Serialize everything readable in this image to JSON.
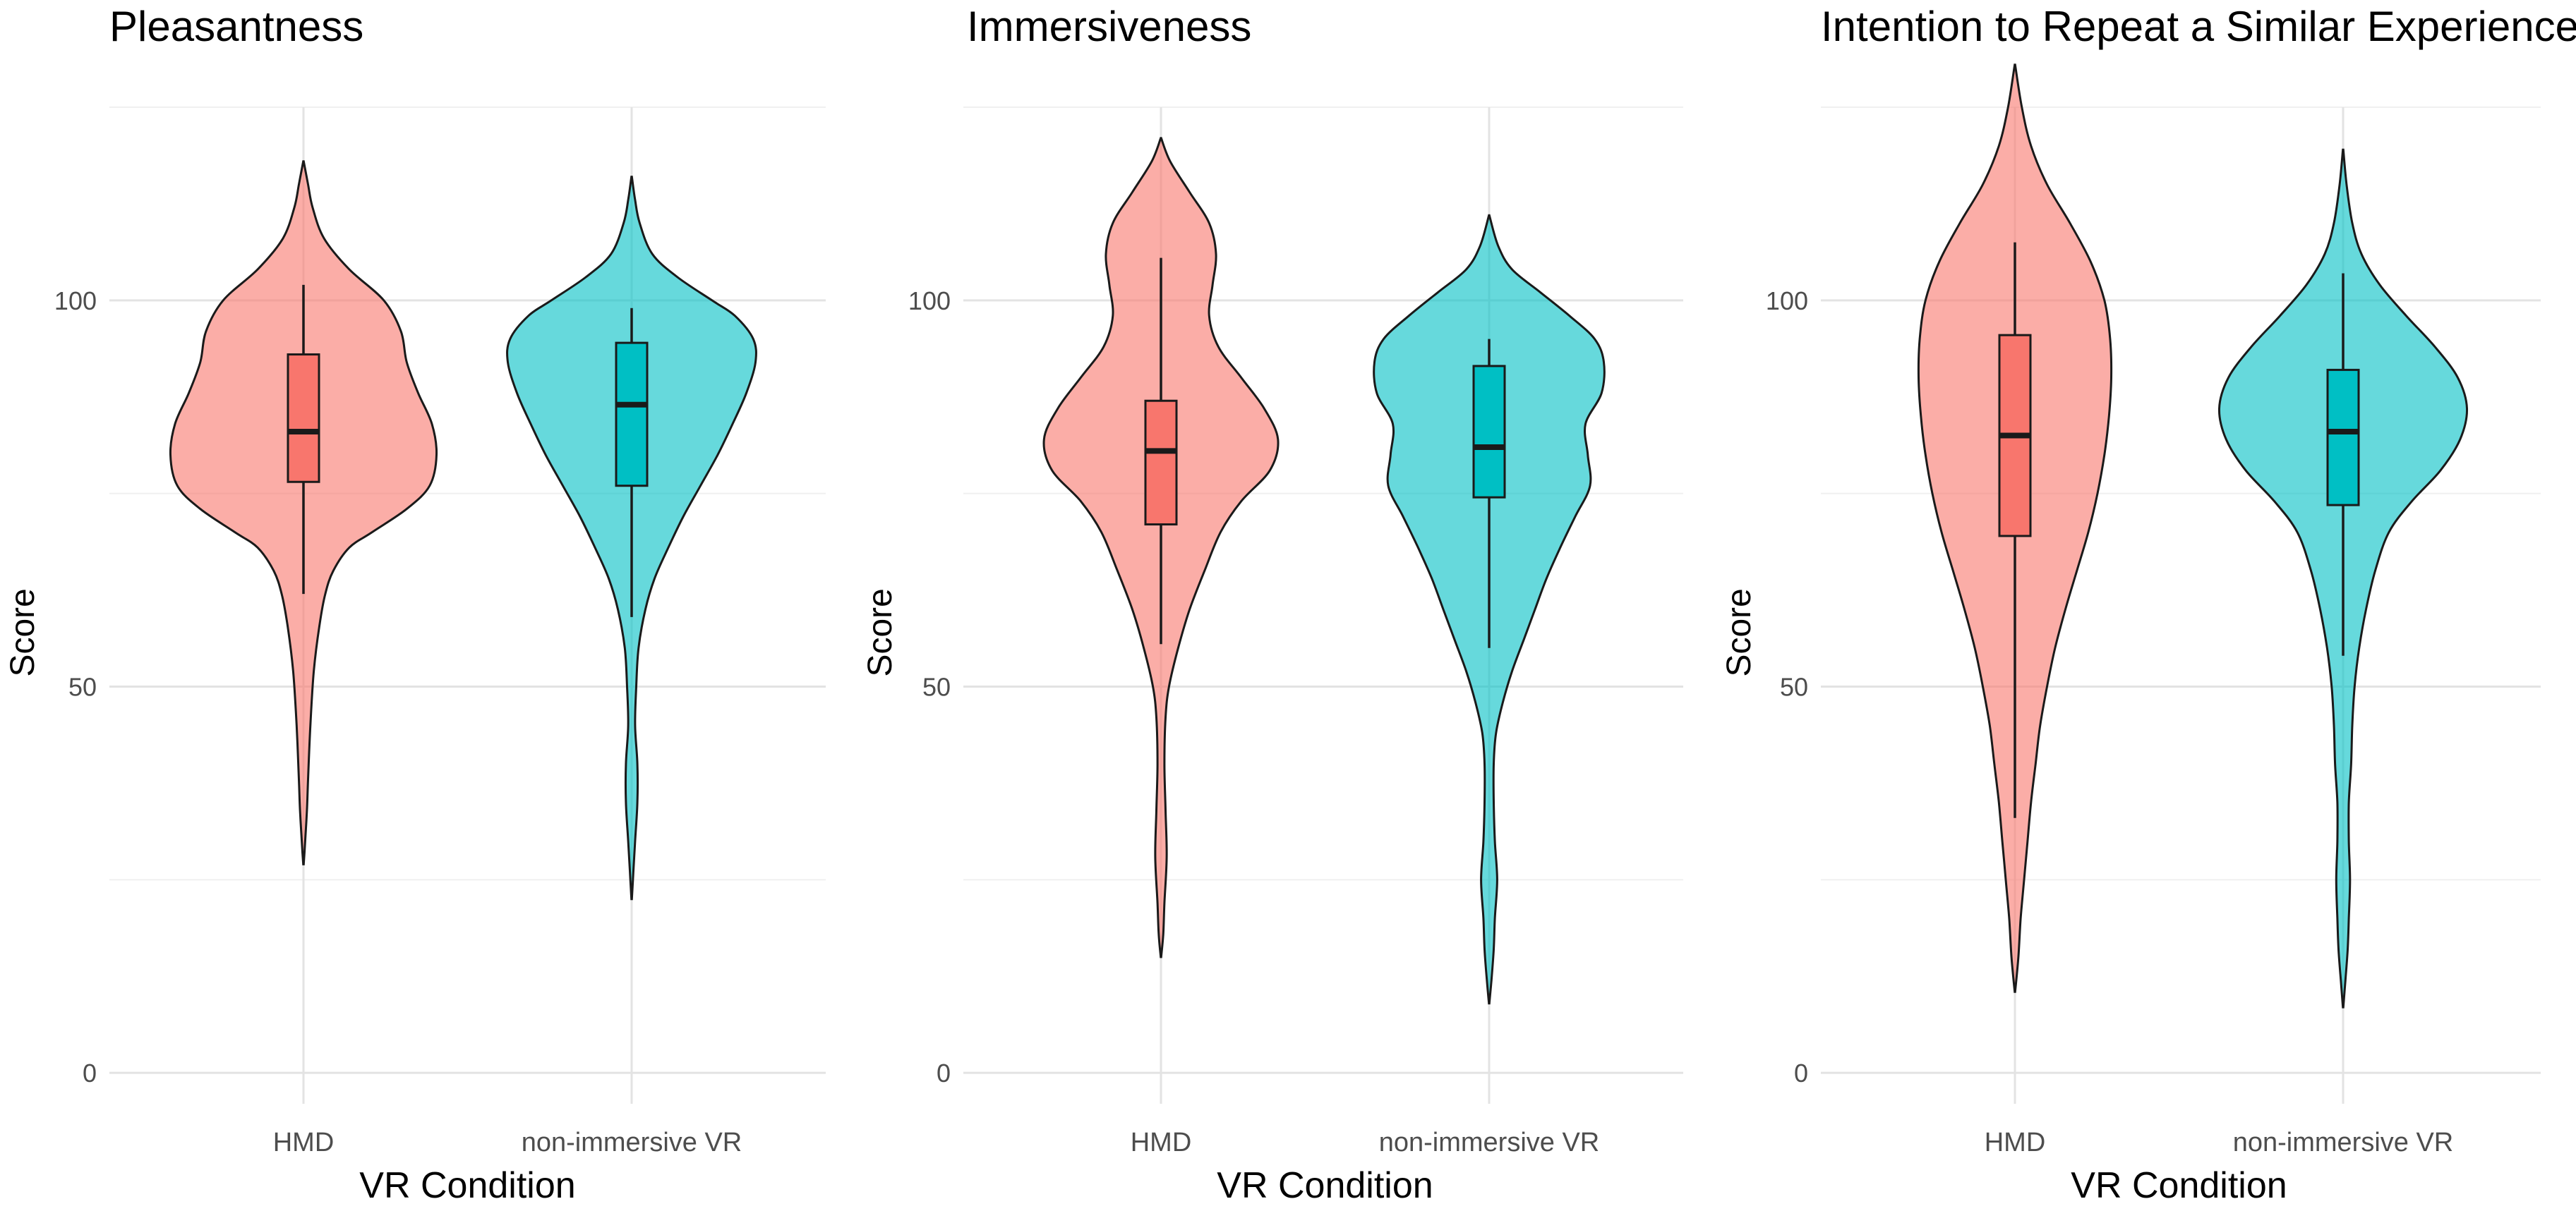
{
  "chart_data": [
    {
      "type": "violin",
      "title": "Pleasantness",
      "xlabel": "VR Condition",
      "ylabel": "Score",
      "ylim": [
        -4,
        125
      ],
      "yticks": [
        0,
        50,
        100
      ],
      "ytick_labels": [
        "0",
        "50",
        "100"
      ],
      "minor_yticks": [
        25,
        75,
        125
      ],
      "categories": [
        "HMD",
        "non-immersive VR"
      ],
      "grid": true,
      "series": [
        {
          "name": "HMD",
          "fill": "#F8766D",
          "violin_range": [
            27,
            118
          ],
          "density_half_width": [
            [
              27,
              0.2
            ],
            [
              30,
              1.5
            ],
            [
              34,
              3
            ],
            [
              38,
              4
            ],
            [
              45,
              6
            ],
            [
              52,
              9
            ],
            [
              58,
              14
            ],
            [
              62,
              19
            ],
            [
              65,
              26
            ],
            [
              68,
              40
            ],
            [
              70,
              60
            ],
            [
              73,
              90
            ],
            [
              76,
              110
            ],
            [
              80,
              116
            ],
            [
              84,
              112
            ],
            [
              88,
              100
            ],
            [
              92,
              90
            ],
            [
              96,
              85
            ],
            [
              100,
              70
            ],
            [
              104,
              40
            ],
            [
              108,
              18
            ],
            [
              112,
              8
            ],
            [
              115,
              4
            ],
            [
              118,
              0.2
            ]
          ],
          "box": {
            "whisker_low": 62,
            "q1": 76.5,
            "median": 83,
            "q3": 93,
            "whisker_high": 102
          }
        },
        {
          "name": "non-immersive VR",
          "fill": "#00BFC4",
          "violin_range": [
            22.5,
            116
          ],
          "density_half_width": [
            [
              22.5,
              0.2
            ],
            [
              26,
              1.5
            ],
            [
              30,
              3
            ],
            [
              35,
              5
            ],
            [
              40,
              5
            ],
            [
              45,
              3
            ],
            [
              50,
              4
            ],
            [
              55,
              6
            ],
            [
              60,
              12
            ],
            [
              64,
              20
            ],
            [
              68,
              32
            ],
            [
              72,
              45
            ],
            [
              76,
              60
            ],
            [
              80,
              75
            ],
            [
              84,
              88
            ],
            [
              88,
              100
            ],
            [
              92,
              108
            ],
            [
              95,
              106
            ],
            [
              98,
              90
            ],
            [
              100,
              70
            ],
            [
              103,
              40
            ],
            [
              106,
              18
            ],
            [
              110,
              7
            ],
            [
              113,
              3
            ],
            [
              116,
              0.2
            ]
          ],
          "box": {
            "whisker_low": 59,
            "q1": 76,
            "median": 86.5,
            "q3": 94.5,
            "whisker_high": 99
          }
        }
      ]
    },
    {
      "type": "violin",
      "title": "Immersiveness",
      "xlabel": "VR Condition",
      "ylabel": "Score",
      "ylim": [
        -4,
        125
      ],
      "yticks": [
        0,
        50,
        100
      ],
      "ytick_labels": [
        "0",
        "50",
        "100"
      ],
      "minor_yticks": [
        25,
        75,
        125
      ],
      "categories": [
        "HMD",
        "non-immersive VR"
      ],
      "grid": true,
      "series": [
        {
          "name": "HMD",
          "fill": "#F8766D",
          "violin_range": [
            15,
            121
          ],
          "density_half_width": [
            [
              15,
              0.2
            ],
            [
              18,
              2
            ],
            [
              22,
              3
            ],
            [
              28,
              5
            ],
            [
              34,
              4
            ],
            [
              40,
              3
            ],
            [
              46,
              4
            ],
            [
              50,
              7
            ],
            [
              55,
              15
            ],
            [
              60,
              25
            ],
            [
              65,
              38
            ],
            [
              70,
              52
            ],
            [
              74,
              70
            ],
            [
              78,
              95
            ],
            [
              82,
              102
            ],
            [
              86,
              90
            ],
            [
              90,
              70
            ],
            [
              94,
              50
            ],
            [
              98,
              42
            ],
            [
              102,
              45
            ],
            [
              106,
              48
            ],
            [
              110,
              42
            ],
            [
              114,
              25
            ],
            [
              118,
              8
            ],
            [
              121,
              0.2
            ]
          ],
          "box": {
            "whisker_low": 55.5,
            "q1": 71,
            "median": 80.5,
            "q3": 87,
            "whisker_high": 105.5
          }
        },
        {
          "name": "non-immersive VR",
          "fill": "#00BFC4",
          "violin_range": [
            9,
            111
          ],
          "density_half_width": [
            [
              9,
              0.2
            ],
            [
              12,
              2
            ],
            [
              16,
              4
            ],
            [
              20,
              5
            ],
            [
              25,
              7
            ],
            [
              30,
              5
            ],
            [
              35,
              4
            ],
            [
              40,
              4
            ],
            [
              44,
              6
            ],
            [
              48,
              12
            ],
            [
              52,
              20
            ],
            [
              56,
              30
            ],
            [
              60,
              40
            ],
            [
              64,
              50
            ],
            [
              68,
              62
            ],
            [
              72,
              75
            ],
            [
              76,
              88
            ],
            [
              80,
              86
            ],
            [
              84,
              84
            ],
            [
              88,
              98
            ],
            [
              92,
              100
            ],
            [
              95,
              92
            ],
            [
              98,
              70
            ],
            [
              101,
              45
            ],
            [
              104,
              20
            ],
            [
              107,
              8
            ],
            [
              111,
              0.2
            ]
          ],
          "box": {
            "whisker_low": 55,
            "q1": 74.5,
            "median": 81,
            "q3": 91.5,
            "whisker_high": 95
          }
        }
      ]
    },
    {
      "type": "violin",
      "title": "Intention to Repeat a Similar Experience",
      "xlabel": "VR Condition",
      "ylabel": "Score",
      "ylim": [
        -4,
        125
      ],
      "yticks": [
        0,
        50,
        100
      ],
      "ytick_labels": [
        "0",
        "50",
        "100"
      ],
      "minor_yticks": [
        25,
        75,
        125
      ],
      "categories": [
        "HMD",
        "non-immersive VR"
      ],
      "grid": true,
      "series": [
        {
          "name": "HMD",
          "fill": "#F8766D",
          "violin_range": [
            10.5,
            130.5
          ],
          "density_half_width": [
            [
              10.5,
              0.2
            ],
            [
              15,
              3
            ],
            [
              20,
              5
            ],
            [
              25,
              8
            ],
            [
              30,
              11
            ],
            [
              35,
              14
            ],
            [
              40,
              18
            ],
            [
              45,
              22
            ],
            [
              50,
              28
            ],
            [
              55,
              35
            ],
            [
              60,
              44
            ],
            [
              65,
              54
            ],
            [
              70,
              64
            ],
            [
              75,
              72
            ],
            [
              80,
              78
            ],
            [
              85,
              82
            ],
            [
              90,
              84
            ],
            [
              95,
              83
            ],
            [
              100,
              78
            ],
            [
              105,
              66
            ],
            [
              110,
              48
            ],
            [
              115,
              28
            ],
            [
              120,
              14
            ],
            [
              125,
              6
            ],
            [
              130.5,
              0.2
            ]
          ],
          "box": {
            "whisker_low": 33,
            "q1": 69.5,
            "median": 82.5,
            "q3": 95.5,
            "whisker_high": 107.5
          }
        },
        {
          "name": "non-immersive VR",
          "fill": "#00BFC4",
          "violin_range": [
            8.5,
            119.5
          ],
          "density_half_width": [
            [
              8.5,
              0.2
            ],
            [
              12,
              2
            ],
            [
              16,
              4
            ],
            [
              20,
              5
            ],
            [
              25,
              6
            ],
            [
              30,
              5
            ],
            [
              35,
              5
            ],
            [
              40,
              7
            ],
            [
              45,
              8
            ],
            [
              50,
              10
            ],
            [
              55,
              14
            ],
            [
              60,
              20
            ],
            [
              65,
              28
            ],
            [
              70,
              40
            ],
            [
              74,
              60
            ],
            [
              78,
              85
            ],
            [
              82,
              102
            ],
            [
              86,
              108
            ],
            [
              90,
              100
            ],
            [
              94,
              80
            ],
            [
              98,
              55
            ],
            [
              102,
              32
            ],
            [
              106,
              16
            ],
            [
              110,
              8
            ],
            [
              115,
              3
            ],
            [
              119.5,
              0.2
            ]
          ],
          "box": {
            "whisker_low": 54,
            "q1": 73.5,
            "median": 83,
            "q3": 91,
            "whisker_high": 103.5
          }
        }
      ]
    }
  ]
}
